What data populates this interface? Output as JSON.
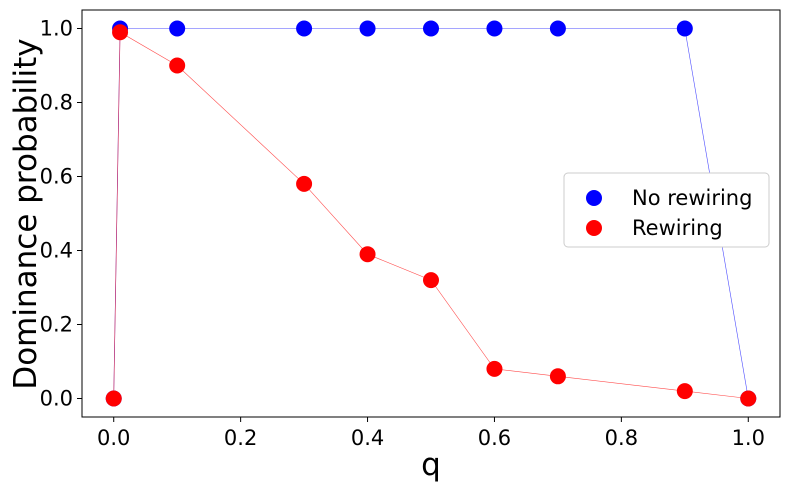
{
  "chart_data": {
    "type": "scatter",
    "title": "",
    "xlabel": "q",
    "ylabel": "Dominance probability",
    "xlim": [
      -0.05,
      1.05
    ],
    "ylim": [
      -0.05,
      1.05
    ],
    "x_ticks": [
      0.0,
      0.2,
      0.4,
      0.6,
      0.8,
      1.0
    ],
    "x_tick_labels": [
      "0.0",
      "0.2",
      "0.4",
      "0.6",
      "0.8",
      "1.0"
    ],
    "y_ticks": [
      0.0,
      0.2,
      0.4,
      0.6,
      0.8,
      1.0
    ],
    "y_tick_labels": [
      "0.0",
      "0.2",
      "0.4",
      "0.6",
      "0.8",
      "1.0"
    ],
    "grid": false,
    "legend_position": "center-right",
    "series": [
      {
        "name": "No rewiring",
        "color": "#0000ff",
        "x": [
          0.0,
          0.01,
          0.1,
          0.3,
          0.4,
          0.5,
          0.6,
          0.7,
          0.9,
          1.0
        ],
        "y": [
          0.0,
          1.0,
          1.0,
          1.0,
          1.0,
          1.0,
          1.0,
          1.0,
          1.0,
          0.0
        ]
      },
      {
        "name": "Rewiring",
        "color": "#ff0000",
        "x": [
          0.0,
          0.01,
          0.1,
          0.3,
          0.4,
          0.5,
          0.6,
          0.7,
          0.9,
          1.0
        ],
        "y": [
          0.0,
          0.99,
          0.9,
          0.58,
          0.39,
          0.32,
          0.08,
          0.06,
          0.02,
          0.0
        ]
      }
    ]
  }
}
